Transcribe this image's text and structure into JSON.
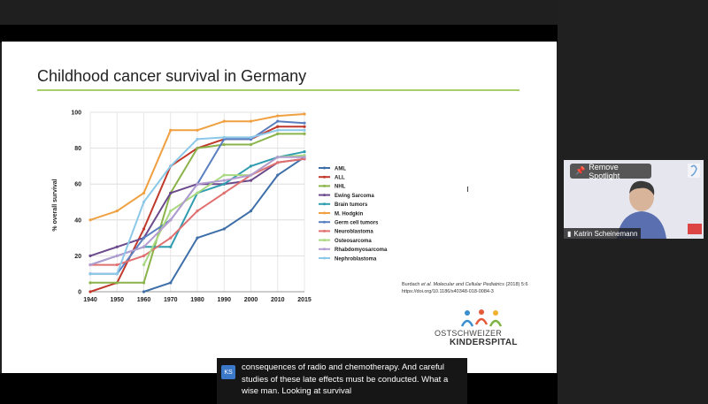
{
  "slide": {
    "title": "Childhood cancer survival in Germany",
    "citation_prefix": "Burdach",
    "citation_etal": "et al.",
    "citation_journal": "Molecular and Cellular Pediatrics",
    "citation_year": "(2018) 5:6",
    "citation_doi": "https://doi.org/10.1186/s40348-018-0084-3",
    "logo_line1": "OSTSCHWEIZER",
    "logo_line2": "KINDERSPITAL"
  },
  "video": {
    "spotlight_label": "Remove Spotlight",
    "participant_name": "Katrin Scheinemann"
  },
  "caption": {
    "speaker_initials": "KS",
    "text": "consequences of radio and chemotherapy. And careful studies of these late effects must be conducted. What a wise man. Looking at survival"
  },
  "colors": {
    "title_rule": "#a8cf6c",
    "caption_avatar": "#3c78c8"
  },
  "chart_data": {
    "type": "line",
    "x": [
      1940,
      1950,
      1960,
      1970,
      1980,
      1990,
      2000,
      2010,
      2015
    ],
    "ylabel": "% overall survival",
    "ylim": [
      0,
      100
    ],
    "yticks": [
      0,
      20,
      40,
      60,
      80,
      100
    ],
    "legend_position": "right",
    "series": [
      {
        "name": "AML",
        "color": "#3f6fa8",
        "values": [
          null,
          null,
          0,
          5,
          30,
          35,
          45,
          65,
          75
        ]
      },
      {
        "name": "ALL",
        "color": "#c0392b",
        "values": [
          0,
          5,
          35,
          70,
          80,
          85,
          85,
          92,
          92
        ]
      },
      {
        "name": "NHL",
        "color": "#8ab34a",
        "values": [
          5,
          5,
          5,
          55,
          80,
          82,
          82,
          88,
          88
        ]
      },
      {
        "name": "Ewing Sarcoma",
        "color": "#6b4a8c",
        "values": [
          20,
          25,
          30,
          55,
          60,
          60,
          62,
          72,
          74
        ]
      },
      {
        "name": "Brain tumors",
        "color": "#2f9cb0",
        "values": [
          15,
          20,
          25,
          25,
          55,
          60,
          70,
          75,
          78
        ]
      },
      {
        "name": "M. Hodgkin",
        "color": "#f0a040",
        "values": [
          40,
          45,
          55,
          90,
          90,
          95,
          95,
          98,
          99
        ]
      },
      {
        "name": "Germ cell tumors",
        "color": "#5a7fc0",
        "values": [
          10,
          10,
          30,
          40,
          60,
          85,
          85,
          95,
          94
        ]
      },
      {
        "name": "Neuroblastoma",
        "color": "#e07070",
        "values": [
          15,
          15,
          20,
          30,
          45,
          55,
          65,
          72,
          74
        ]
      },
      {
        "name": "Osteosarcoma",
        "color": "#a8d880",
        "values": [
          null,
          null,
          15,
          45,
          55,
          65,
          65,
          75,
          76
        ]
      },
      {
        "name": "Rhabdomyosarcoma",
        "color": "#b39cd0",
        "values": [
          15,
          20,
          25,
          40,
          60,
          62,
          65,
          75,
          75
        ]
      },
      {
        "name": "Nephroblastoma",
        "color": "#8cc8e8",
        "values": [
          10,
          10,
          50,
          70,
          85,
          86,
          86,
          90,
          90
        ]
      }
    ]
  }
}
